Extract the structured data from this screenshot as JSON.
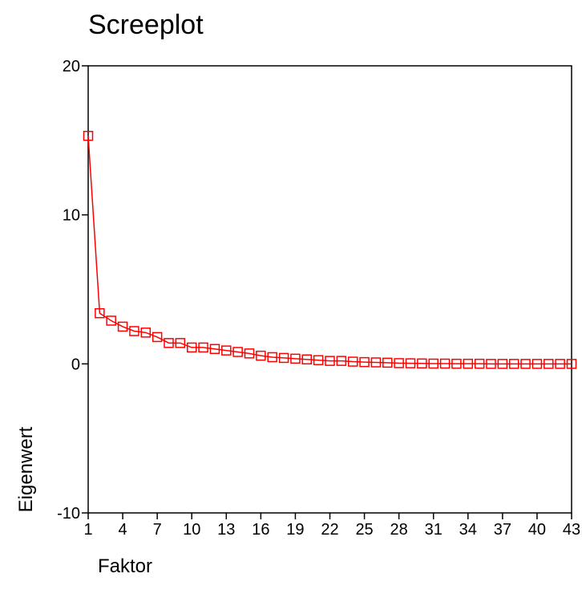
{
  "chart_data": {
    "type": "line",
    "title": "Screeplot",
    "xlabel": "Faktor",
    "ylabel": "Eigenwert",
    "xlim": [
      1,
      43
    ],
    "ylim": [
      -10,
      20
    ],
    "xticks": [
      1,
      4,
      7,
      10,
      13,
      16,
      19,
      22,
      25,
      28,
      31,
      34,
      37,
      40,
      43
    ],
    "yticks": [
      -10,
      0,
      10,
      20
    ],
    "grid": false,
    "marker": "square",
    "color": "#ff0000",
    "x": [
      1,
      2,
      3,
      4,
      5,
      6,
      7,
      8,
      9,
      10,
      11,
      12,
      13,
      14,
      15,
      16,
      17,
      18,
      19,
      20,
      21,
      22,
      23,
      24,
      25,
      26,
      27,
      28,
      29,
      30,
      31,
      32,
      33,
      34,
      35,
      36,
      37,
      38,
      39,
      40,
      41,
      42,
      43
    ],
    "values": [
      15.3,
      3.4,
      2.9,
      2.5,
      2.2,
      2.1,
      1.8,
      1.4,
      1.4,
      1.1,
      1.1,
      1.0,
      0.9,
      0.8,
      0.7,
      0.55,
      0.45,
      0.4,
      0.35,
      0.3,
      0.25,
      0.2,
      0.2,
      0.15,
      0.12,
      0.1,
      0.08,
      0.05,
      0.04,
      0.03,
      0.02,
      0.02,
      0.01,
      0.01,
      0.01,
      0.0,
      0.0,
      0.0,
      0.0,
      0.0,
      0.0,
      0.0,
      0.0
    ]
  }
}
